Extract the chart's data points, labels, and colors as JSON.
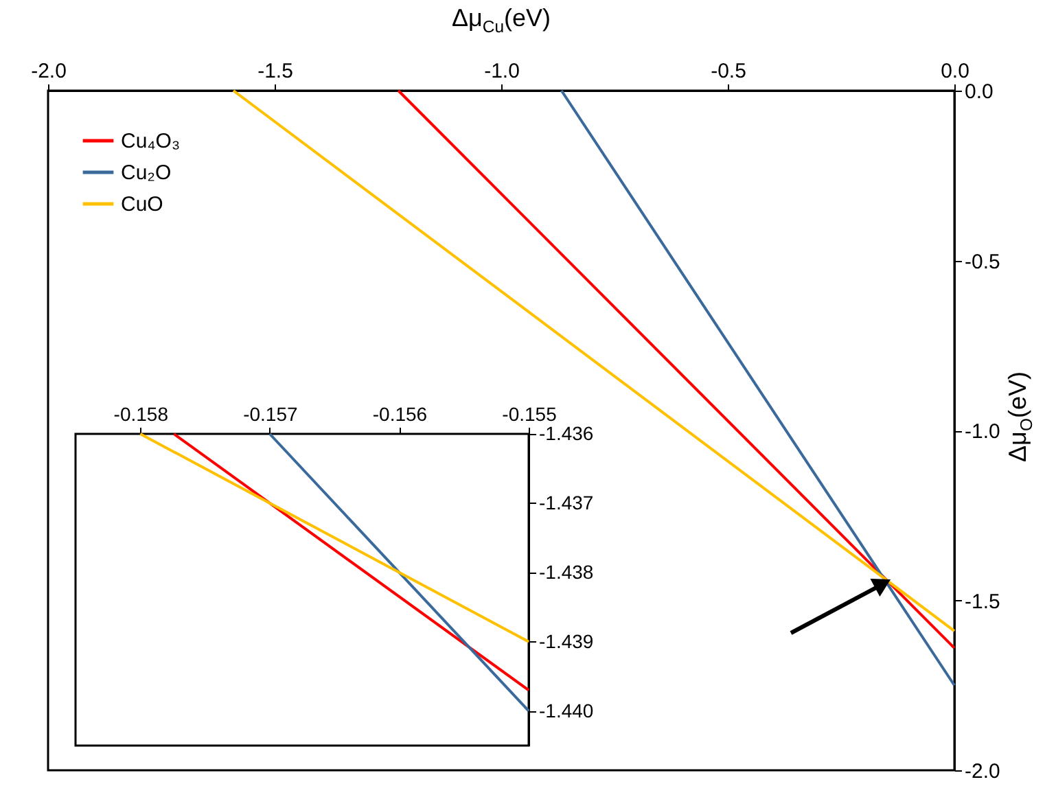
{
  "chart_data": [
    {
      "type": "line",
      "xlabel": "Δμ$_{Cu}$(eV)",
      "ylabel": "Δμ$_{O}$(eV)",
      "xlim": [
        -2,
        0
      ],
      "xticks": [
        {
          "value": -2,
          "label": "-2.0"
        },
        -1.5,
        {
          "value": -1,
          "label": "-1.0"
        },
        -0.5,
        {
          "value": 0,
          "label": "0.0"
        }
      ],
      "ylim": [
        -2,
        0
      ],
      "yticks": [
        {
          "value": -2,
          "label": "-2.0"
        },
        -1.5,
        {
          "value": -1,
          "label": "-1.0"
        },
        -0.5,
        {
          "value": 0,
          "label": "0.0"
        }
      ],
      "grid": false,
      "legend": "top left",
      "marker": "none",
      "line_style": "solid",
      "series": [
        {
          "name": "Cu₄O₃",
          "color": "#ff0000",
          "x": [
            -1.227,
            0
          ],
          "values": [
            0,
            -1.64
          ]
        },
        {
          "name": "Cu₂O",
          "color": "#3a6a9c",
          "x": [
            -0.867,
            0
          ],
          "values": [
            0,
            -1.75
          ]
        },
        {
          "name": "CuO",
          "color": "#ffc000",
          "x": [
            -1.591,
            0
          ],
          "values": [
            0,
            -1.59
          ]
        }
      ]
    },
    {
      "type": "line",
      "xlim": [
        -0.1585,
        -0.155
      ],
      "xticks": [
        -0.158,
        -0.157,
        -0.156,
        -0.155
      ],
      "ylim": [
        -1.4405,
        -1.436
      ],
      "yticks": [
        -1.436,
        -1.437,
        -1.438,
        -1.439,
        {
          "value": -1.44,
          "label": "-1.440"
        }
      ],
      "grid": false,
      "marker": "none",
      "line_style": "solid",
      "series": [
        {
          "color": "#ff0000",
          "x": [
            -0.15774,
            -0.155
          ],
          "values": [
            -1.436,
            -1.4397
          ]
        },
        {
          "color": "#3a6a9c",
          "x": [
            -0.157,
            -0.155
          ],
          "values": [
            -1.436,
            -1.44
          ]
        },
        {
          "color": "#ffc000",
          "x": [
            -0.158,
            -0.155
          ],
          "values": [
            -1.436,
            -1.439
          ]
        }
      ]
    }
  ]
}
